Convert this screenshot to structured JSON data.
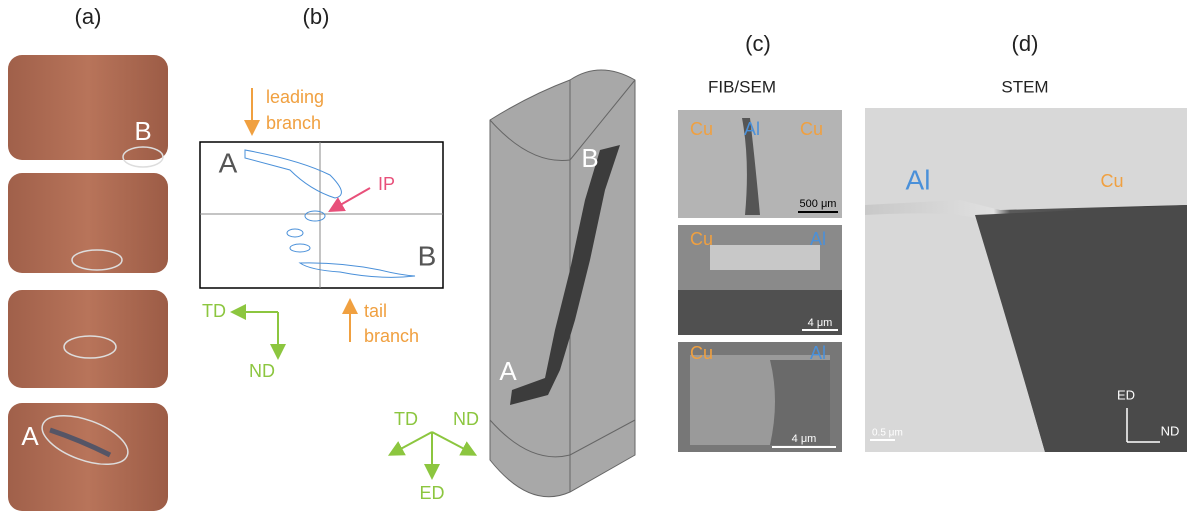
{
  "panels": {
    "a": {
      "label": "(a)",
      "marks": [
        "B",
        "A"
      ]
    },
    "b": {
      "label": "(b)",
      "leading_branch": [
        "leading",
        "branch"
      ],
      "start": "A",
      "ip": "IP",
      "end": "B",
      "tail_branch": [
        "tail",
        "branch"
      ],
      "axis_h": "TD",
      "axis_v": "ND",
      "model_top": "B",
      "model_bottom": "A",
      "axes3d": [
        "TD",
        "ND",
        "ED"
      ]
    },
    "c": {
      "label": "(c)",
      "method": "FIB/SEM",
      "images": [
        {
          "left": "Cu",
          "mid": "Al",
          "right": "Cu",
          "scale": "500 μm"
        },
        {
          "left": "Cu",
          "right": "Al",
          "scale": "4 μm"
        },
        {
          "left": "Cu",
          "right": "Al",
          "scale": "4 μm"
        }
      ]
    },
    "d": {
      "label": "(d)",
      "method": "STEM",
      "left": "Al",
      "right": "Cu",
      "axis_v": "ED",
      "axis_h": "ND",
      "scale": "0.5 μm"
    }
  }
}
